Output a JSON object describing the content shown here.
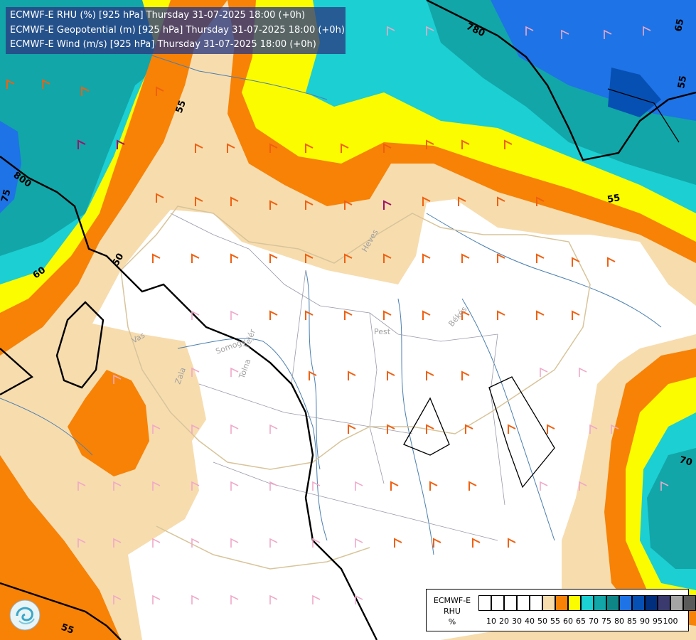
{
  "title_lines": [
    "ECMWF-E RHU (%) [925 hPa] Thursday 31-07-2025 18:00 (+0h)",
    "ECMWF-E Geopotential (m) [925 hPa] Thursday 31-07-2025 18:00 (+0h)",
    "ECMWF-E Wind (m/s) [925 hPa] Thursday 31-07-2025 18:00 (+0h)"
  ],
  "legend": {
    "title_lines": [
      "ECMWF-E",
      "RHU",
      "%"
    ],
    "colors": [
      "#ffffff",
      "#ffffff",
      "#ffffff",
      "#ffffff",
      "#ffffff",
      "#f7dcae",
      "#f78206",
      "#fcfc00",
      "#1ccfd2",
      "#12a6a8",
      "#0e8688",
      "#1e73e6",
      "#0650b4",
      "#022e7e",
      "#3a3a6e",
      "#a5a5a5",
      "#5a5a5a"
    ],
    "tick_labels": [
      "10",
      "20",
      "30",
      "40",
      "50",
      "55",
      "60",
      "65",
      "70",
      "75",
      "80",
      "85",
      "90",
      "95",
      "100"
    ]
  },
  "map_labels": {
    "geopotential": [
      "780",
      "800",
      "55",
      "55",
      "60",
      "50",
      "75",
      "65",
      "70",
      "55",
      "55"
    ],
    "regions": [
      "Heves",
      "Pest",
      "Békés",
      "Vas",
      "Somogy",
      "Fejér",
      "Tolna",
      "Zala"
    ]
  },
  "logo_icon": "ecmwf-swirl-icon"
}
